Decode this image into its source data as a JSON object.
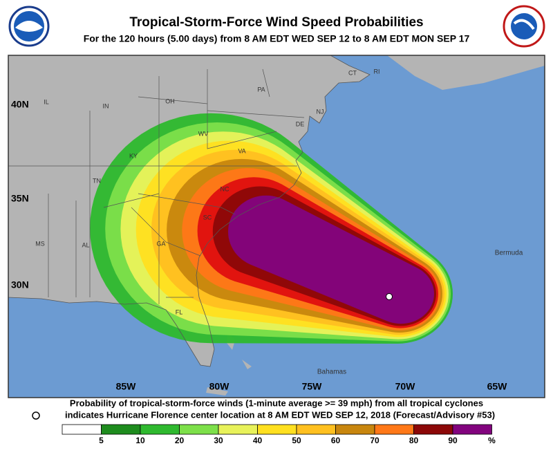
{
  "header": {
    "title": "Tropical-Storm-Force Wind Speed Probabilities",
    "subtitle": "For the 120 hours (5.00 days) from 8 AM EDT WED SEP 12 to 8 AM EDT MON SEP 17"
  },
  "map": {
    "lat_labels": [
      "40N",
      "35N",
      "30N"
    ],
    "lon_labels": [
      "85W",
      "80W",
      "75W",
      "70W",
      "65W"
    ],
    "place_labels": [
      "IL",
      "IN",
      "OH",
      "PA",
      "NJ",
      "CT",
      "RI",
      "WV",
      "DE",
      "VA",
      "KY",
      "TN",
      "NC",
      "SC",
      "MS",
      "AL",
      "GA",
      "FL",
      "Bermuda",
      "Bahamas"
    ]
  },
  "footer": {
    "line1": "Probability of tropical-storm-force winds (1-minute average >= 39 mph) from all tropical cyclones",
    "line2": "indicates Hurricane Florence center location at 8 AM EDT WED SEP 12, 2018 (Forecast/Advisory #53)"
  },
  "legend": {
    "labels": [
      "5",
      "10",
      "20",
      "30",
      "40",
      "50",
      "60",
      "70",
      "80",
      "90",
      "%"
    ],
    "colors": [
      "#ffffff",
      "#1e8c1e",
      "#2fb92f",
      "#7de04a",
      "#e8f25a",
      "#ffe020",
      "#ffc020",
      "#c8860e",
      "#ff7818",
      "#e01010",
      "#8c0808",
      "#82047e"
    ]
  }
}
